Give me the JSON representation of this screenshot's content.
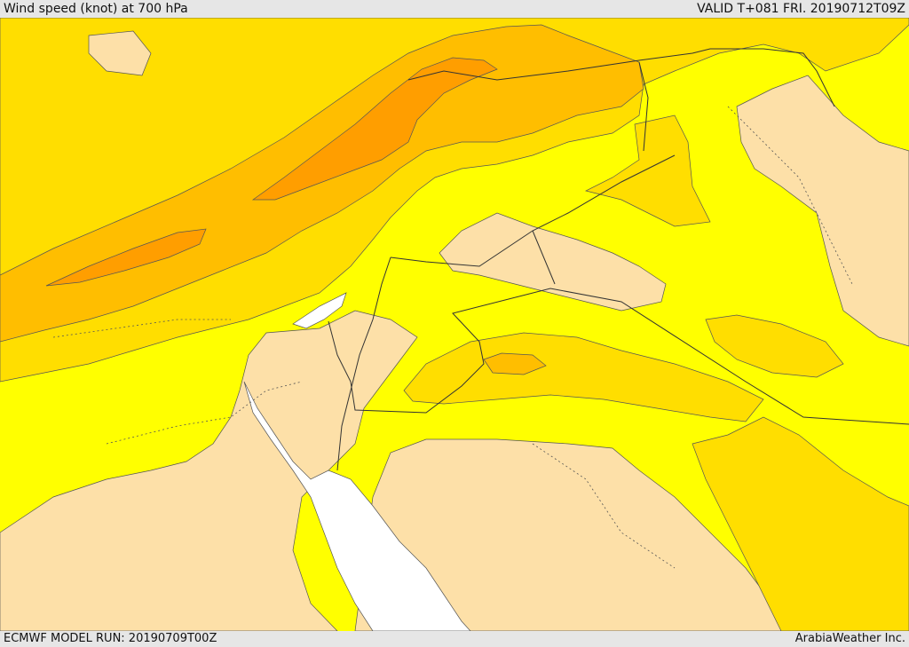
{
  "header": {
    "title": "Wind speed (knot) at 700 hPa",
    "valid_time": "VALID T+081 FRI. 20190712T09Z"
  },
  "footer": {
    "model_run": "ECMWF MODEL RUN: 20190709T00Z",
    "credit": "ArabiaWeather Inc."
  },
  "map": {
    "colors": {
      "light": "#fde0a8",
      "yellow": "#ffff00",
      "gold": "#ffde00",
      "amber": "#ffbe00",
      "orange": "#ff9e00",
      "sea_gap": "#ffffff"
    }
  }
}
